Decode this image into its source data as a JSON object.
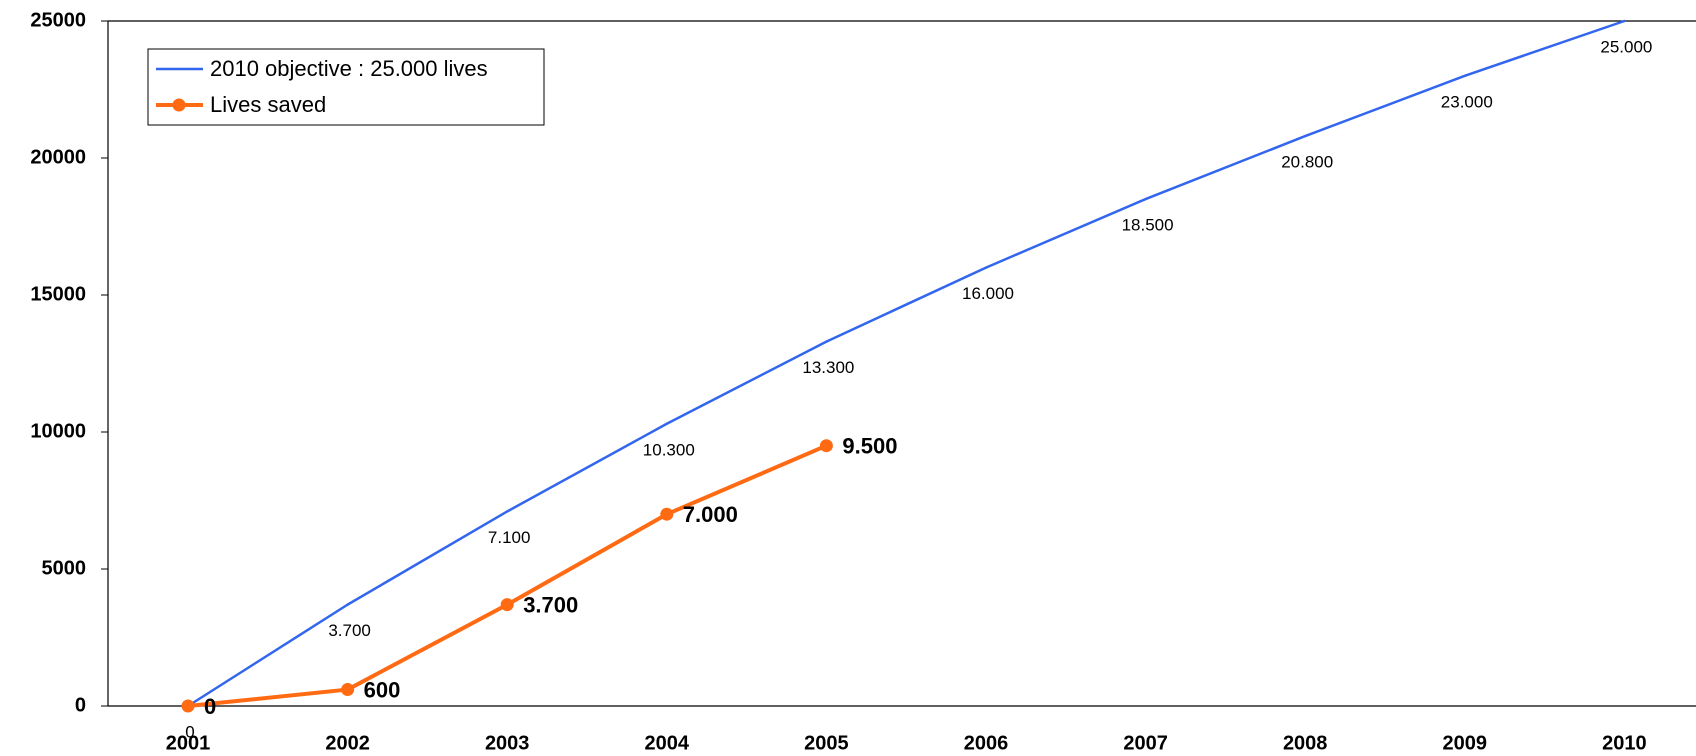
{
  "chart_data": {
    "type": "line",
    "categories": [
      "2001",
      "2002",
      "2003",
      "2004",
      "2005",
      "2006",
      "2007",
      "2008",
      "2009",
      "2010"
    ],
    "series": [
      {
        "name": "2010 objective : 25.000 lives",
        "color": "#3366ee",
        "marker": false,
        "values": [
          0,
          3700,
          7100,
          10300,
          13300,
          16000,
          18500,
          20800,
          23000,
          25000
        ],
        "value_labels": [
          "0",
          "3.700",
          "7.100",
          "10.300",
          "13.300",
          "16.000",
          "18.500",
          "20.800",
          "23.000",
          "25.000"
        ]
      },
      {
        "name": "Lives saved",
        "color": "#ff6a13",
        "marker": true,
        "values": [
          0,
          600,
          3700,
          7000,
          9500,
          null,
          null,
          null,
          null,
          null
        ],
        "value_labels": [
          "0",
          "600",
          "3.700",
          "7.000",
          "9.500",
          null,
          null,
          null,
          null,
          null
        ]
      }
    ],
    "ylim": [
      0,
      25000
    ],
    "yticks": [
      0,
      5000,
      10000,
      15000,
      20000,
      25000
    ],
    "grid": false,
    "legend": "top-left"
  }
}
